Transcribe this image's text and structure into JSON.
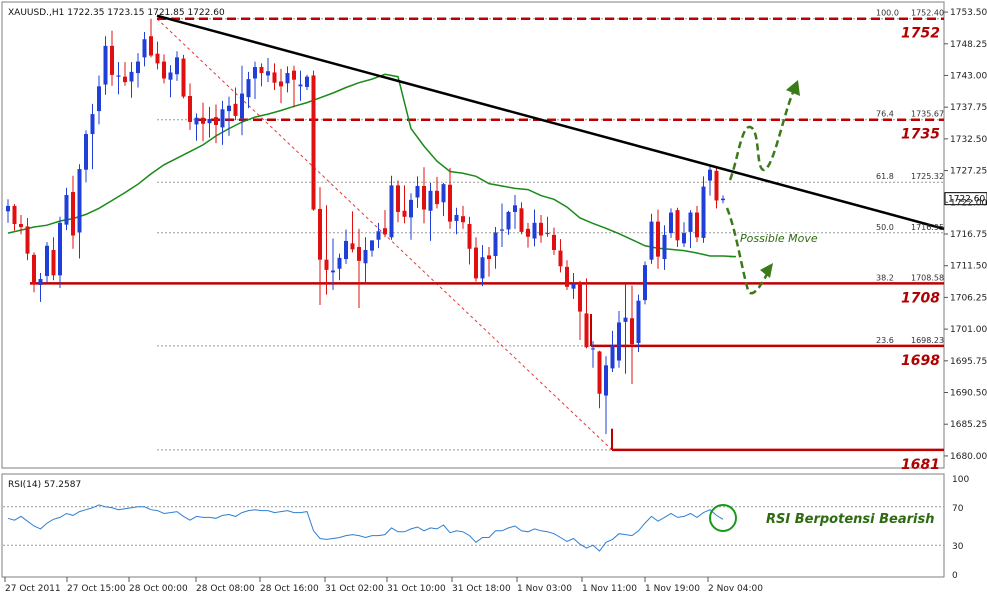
{
  "chart_data": {
    "type": "candlestick",
    "symbol_info": "XAUUSD.,H1  1722.35 1723.15 1721.85 1722.60",
    "ylim": [
      1678,
      1755
    ],
    "y_ticks": [
      "1753.50",
      "1748.25",
      "1743.00",
      "1737.75",
      "1732.50",
      "1727.25",
      "1722.00",
      "1716.75",
      "1711.50",
      "1706.25",
      "1701.00",
      "1695.75",
      "1690.50",
      "1685.25",
      "1680.00"
    ],
    "x_ticks": [
      "27 Oct 2011",
      "27 Oct 15:00",
      "28 Oct 00:00",
      "28 Oct 08:00",
      "28 Oct 16:00",
      "31 Oct 02:00",
      "31 Oct 10:00",
      "31 Oct 18:00",
      "1 Nov 03:00",
      "1 Nov 11:00",
      "1 Nov 19:00",
      "2 Nov 04:00"
    ],
    "current_price": "1722.60",
    "candles": [
      [
        1720.5,
        1722.5,
        1718.6,
        1721.4
      ],
      [
        1721.4,
        1721.7,
        1717.3,
        1718.4
      ],
      [
        1718.4,
        1719.9,
        1716.7,
        1717.9
      ],
      [
        1718.0,
        1719.4,
        1712.4,
        1713.5
      ],
      [
        1713.3,
        1713.7,
        1707.1,
        1708.5
      ],
      [
        1708.3,
        1710.3,
        1705.5,
        1709.3
      ],
      [
        1709.8,
        1715.4,
        1708.7,
        1714.8
      ],
      [
        1714.1,
        1716.2,
        1709.1,
        1709.9
      ],
      [
        1709.9,
        1719.6,
        1707.8,
        1718.6
      ],
      [
        1718.3,
        1724.4,
        1717.4,
        1723.2
      ],
      [
        1723.7,
        1726.4,
        1714.3,
        1716.5
      ],
      [
        1717.0,
        1728.3,
        1712.7,
        1727.5
      ],
      [
        1727.4,
        1733.9,
        1725.3,
        1733.3
      ],
      [
        1733.3,
        1738.3,
        1727.5,
        1736.6
      ],
      [
        1737.1,
        1743.0,
        1734.9,
        1741.2
      ],
      [
        1741.5,
        1749.5,
        1739.8,
        1747.9
      ],
      [
        1747.9,
        1750.4,
        1741.3,
        1743.1
      ],
      [
        1742.8,
        1745.2,
        1739.9,
        1743.0
      ],
      [
        1742.8,
        1745.2,
        1741.3,
        1741.9
      ],
      [
        1742.0,
        1745.2,
        1739.3,
        1743.6
      ],
      [
        1743.4,
        1746.7,
        1741.0,
        1745.3
      ],
      [
        1746.0,
        1750.2,
        1744.5,
        1749.0
      ],
      [
        1749.5,
        1752.4,
        1746.0,
        1746.3
      ],
      [
        1746.6,
        1748.6,
        1744.0,
        1745.0
      ],
      [
        1745.3,
        1746.5,
        1741.7,
        1742.5
      ],
      [
        1742.3,
        1744.7,
        1739.4,
        1743.5
      ],
      [
        1743.2,
        1747.0,
        1742.1,
        1746.0
      ],
      [
        1745.8,
        1746.4,
        1739.2,
        1739.5
      ],
      [
        1739.6,
        1741.7,
        1734.0,
        1735.3
      ],
      [
        1734.9,
        1736.7,
        1732.2,
        1736.0
      ],
      [
        1736.0,
        1738.5,
        1732.1,
        1735.0
      ],
      [
        1735.1,
        1737.8,
        1732.7,
        1735.8
      ],
      [
        1736.1,
        1738.2,
        1731.8,
        1734.8
      ],
      [
        1734.4,
        1738.8,
        1731.5,
        1737.4
      ],
      [
        1737.1,
        1739.5,
        1733.0,
        1738.0
      ],
      [
        1738.3,
        1741.0,
        1735.6,
        1736.3
      ],
      [
        1735.9,
        1744.6,
        1733.1,
        1740.0
      ],
      [
        1739.4,
        1743.6,
        1737.6,
        1742.4
      ],
      [
        1742.5,
        1745.3,
        1739.1,
        1744.4
      ],
      [
        1744.4,
        1745.0,
        1741.2,
        1743.4
      ],
      [
        1743.0,
        1745.9,
        1741.9,
        1743.7
      ],
      [
        1743.5,
        1745.0,
        1740.6,
        1741.8
      ],
      [
        1742.0,
        1744.1,
        1738.4,
        1741.2
      ],
      [
        1741.7,
        1744.5,
        1740.2,
        1743.4
      ],
      [
        1743.8,
        1744.6,
        1737.7,
        1742.3
      ],
      [
        1741.2,
        1743.8,
        1738.8,
        1741.5
      ],
      [
        1741.1,
        1743.1,
        1740.6,
        1742.8
      ],
      [
        1743.0,
        1743.8,
        1720.6,
        1720.8
      ],
      [
        1720.9,
        1724.5,
        1705.0,
        1712.5
      ],
      [
        1712.5,
        1721.5,
        1706.7,
        1710.8
      ],
      [
        1710.4,
        1716.0,
        1707.5,
        1710.7
      ],
      [
        1711.0,
        1713.5,
        1709.1,
        1712.8
      ],
      [
        1712.6,
        1717.5,
        1711.8,
        1715.6
      ],
      [
        1715.2,
        1720.5,
        1713.7,
        1714.2
      ],
      [
        1714.6,
        1717.6,
        1704.5,
        1712.3
      ],
      [
        1711.9,
        1716.2,
        1708.4,
        1714.1
      ],
      [
        1714.0,
        1715.6,
        1713.0,
        1715.7
      ],
      [
        1715.8,
        1718.6,
        1714.4,
        1717.2
      ],
      [
        1717.7,
        1720.7,
        1716.2,
        1716.7
      ],
      [
        1716.2,
        1726.4,
        1715.8,
        1724.8
      ],
      [
        1724.8,
        1725.6,
        1718.7,
        1720.4
      ],
      [
        1720.6,
        1724.8,
        1718.5,
        1719.6
      ],
      [
        1719.5,
        1723.5,
        1715.8,
        1722.4
      ],
      [
        1722.8,
        1726.3,
        1721.1,
        1724.7
      ],
      [
        1724.7,
        1727.8,
        1718.5,
        1720.8
      ],
      [
        1720.6,
        1725.2,
        1715.6,
        1723.9
      ],
      [
        1723.9,
        1726.2,
        1721.0,
        1721.7
      ],
      [
        1722.0,
        1725.2,
        1719.7,
        1725.0
      ],
      [
        1724.9,
        1727.7,
        1717.6,
        1718.8
      ],
      [
        1718.9,
        1721.1,
        1716.7,
        1719.9
      ],
      [
        1719.7,
        1721.4,
        1717.6,
        1718.7
      ],
      [
        1718.4,
        1719.6,
        1711.7,
        1714.3
      ],
      [
        1714.5,
        1716.2,
        1708.9,
        1709.4
      ],
      [
        1709.4,
        1714.9,
        1708.1,
        1712.9
      ],
      [
        1713.2,
        1714.6,
        1709.7,
        1712.6
      ],
      [
        1713.1,
        1717.9,
        1711.0,
        1717.0
      ],
      [
        1717.3,
        1721.8,
        1714.6,
        1717.5
      ],
      [
        1717.5,
        1720.6,
        1716.6,
        1720.4
      ],
      [
        1720.4,
        1723.2,
        1717.6,
        1721.5
      ],
      [
        1721.0,
        1722.0,
        1716.7,
        1717.1
      ],
      [
        1717.6,
        1718.6,
        1714.5,
        1716.3
      ],
      [
        1716.0,
        1720.8,
        1714.7,
        1718.6
      ],
      [
        1718.6,
        1719.9,
        1715.3,
        1716.5
      ],
      [
        1716.9,
        1719.6,
        1716.3,
        1716.8
      ],
      [
        1716.6,
        1717.8,
        1713.3,
        1714.1
      ],
      [
        1714.0,
        1715.9,
        1710.4,
        1711.4
      ],
      [
        1711.3,
        1712.4,
        1707.5,
        1708.0
      ],
      [
        1707.7,
        1710.3,
        1706.0,
        1708.5
      ],
      [
        1708.8,
        1709.0,
        1699.2,
        1703.9
      ],
      [
        1703.6,
        1709.4,
        1697.8,
        1698.0
      ],
      [
        1697.8,
        1699.0,
        1694.6,
        1697.8
      ],
      [
        1697.3,
        1697.4,
        1687.9,
        1690.3
      ],
      [
        1690.0,
        1696.5,
        1683.6,
        1695.0
      ],
      [
        1694.5,
        1700.7,
        1693.9,
        1698.3
      ],
      [
        1695.8,
        1704.0,
        1694.6,
        1702.1
      ],
      [
        1702.2,
        1708.6,
        1693.6,
        1702.9
      ],
      [
        1702.8,
        1708.2,
        1691.9,
        1698.5
      ],
      [
        1698.7,
        1706.7,
        1697.2,
        1705.7
      ],
      [
        1705.8,
        1712.2,
        1705.1,
        1711.6
      ],
      [
        1712.5,
        1720.1,
        1711.8,
        1718.8
      ],
      [
        1718.8,
        1720.8,
        1711.0,
        1713.0
      ],
      [
        1712.6,
        1718.2,
        1710.8,
        1716.6
      ],
      [
        1716.9,
        1721.0,
        1716.1,
        1720.3
      ],
      [
        1720.7,
        1721.1,
        1714.6,
        1715.7
      ],
      [
        1715.2,
        1718.7,
        1714.6,
        1716.9
      ],
      [
        1717.1,
        1720.7,
        1714.4,
        1720.3
      ],
      [
        1720.3,
        1721.4,
        1715.4,
        1716.2
      ],
      [
        1716.1,
        1726.3,
        1715.3,
        1724.6
      ],
      [
        1725.6,
        1728.0,
        1723.1,
        1727.4
      ],
      [
        1727.2,
        1727.8,
        1721.0,
        1722.3
      ],
      [
        1722.35,
        1723.15,
        1721.85,
        1722.6
      ]
    ],
    "ma": [
      1716.9,
      1717.4,
      1717.9,
      1718.2,
      1718.9,
      1719.3,
      1720.0,
      1721.0,
      1722.3,
      1723.6,
      1725.0,
      1726.7,
      1728.2,
      1729.3,
      1730.4,
      1731.5,
      1733.0,
      1734.2,
      1735.3,
      1736.1,
      1736.6,
      1737.2,
      1737.9,
      1738.5,
      1739.3,
      1740.1,
      1741.0,
      1741.8,
      1742.4,
      1743.2,
      1742.8,
      1734.2,
      1731.3,
      1728.8,
      1727.1,
      1726.8,
      1726.3,
      1725.1,
      1724.7,
      1724.3,
      1724.1,
      1723.1,
      1722.5,
      1721.2,
      1719.4,
      1718.5,
      1717.7,
      1716.8,
      1715.8,
      1714.8,
      1714.4,
      1714.2,
      1714.0,
      1713.6,
      1713.1,
      1713.1,
      1713.0
    ],
    "ma_start_index": 0,
    "ma_end_price": 1713.0,
    "resistance_line": {
      "from": [
        1752.9
      ],
      "to": [
        1717.6
      ]
    },
    "levels": [
      {
        "price": 1752.4,
        "label": "1752",
        "style": "dashed"
      },
      {
        "price": 1735.67,
        "label": "1735",
        "style": "dashed"
      },
      {
        "price": 1708.58,
        "label": "1708",
        "style": "solid"
      },
      {
        "price": 1698.23,
        "label": "1698",
        "style": "solid"
      },
      {
        "price": 1681.0,
        "label": "1681",
        "style": "solid"
      }
    ],
    "fib_levels": [
      {
        "ratio": "100.0",
        "price": "1752.40",
        "value": 1752.4
      },
      {
        "ratio": "76.4",
        "price": "1735.67",
        "value": 1735.67
      },
      {
        "ratio": "61.8",
        "price": "1725.32",
        "value": 1725.32
      },
      {
        "ratio": "50.0",
        "price": "1716.95",
        "value": 1716.95
      },
      {
        "ratio": "38.2",
        "price": "1708.58",
        "value": 1708.58
      },
      {
        "ratio": "23.6",
        "price": "1698.23",
        "value": 1698.23
      }
    ],
    "rsi": {
      "label": "RSI(14) 57.2587",
      "ylim": [
        0,
        100
      ],
      "ticks": [
        "100",
        "70",
        "30",
        "0"
      ],
      "values": [
        58,
        56,
        60,
        55,
        50,
        47,
        53,
        57,
        59,
        63,
        61,
        65,
        67,
        69,
        72,
        70,
        69,
        67,
        68,
        69,
        70,
        70,
        67,
        66,
        63,
        64,
        65,
        60,
        56,
        60,
        59,
        59,
        58,
        61,
        62,
        60,
        64,
        66,
        67,
        66,
        66,
        64,
        65,
        66,
        64,
        64,
        65,
        45,
        37,
        36,
        37,
        38,
        40,
        41,
        40,
        38,
        40,
        40,
        41,
        48,
        44,
        44,
        47,
        49,
        45,
        48,
        47,
        51,
        43,
        45,
        44,
        40,
        33,
        38,
        38,
        45,
        45,
        48,
        50,
        45,
        44,
        47,
        45,
        44,
        42,
        38,
        34,
        37,
        31,
        27,
        30,
        24,
        33,
        36,
        42,
        41,
        40,
        45,
        53,
        60,
        55,
        59,
        63,
        59,
        60,
        63,
        59,
        64,
        67,
        61,
        57
      ]
    },
    "annotations": {
      "possible_move": "Possible Move",
      "rsi_note": "RSI Berpotensi Bearish"
    }
  }
}
